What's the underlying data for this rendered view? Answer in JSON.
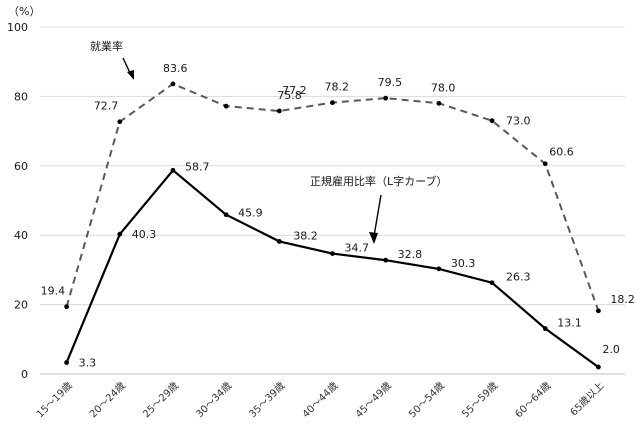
{
  "chart_data": {
    "type": "line",
    "unit_label": "（%）",
    "categories": [
      "15～19歳",
      "20～24歳",
      "25～29歳",
      "30～34歳",
      "35～39歳",
      "40～44歳",
      "45～49歳",
      "50～54歳",
      "55～59歳",
      "60～64歳",
      "65歳以上"
    ],
    "ylim": [
      0,
      100
    ],
    "yticks": [
      0,
      20,
      40,
      60,
      80,
      100
    ],
    "grid": true,
    "series": [
      {
        "name": "就業率",
        "style": "dashed",
        "color": "#595959",
        "values": [
          19.4,
          72.7,
          83.6,
          77.2,
          75.8,
          78.2,
          79.5,
          78.0,
          73.0,
          60.6,
          18.2
        ]
      },
      {
        "name": "正規雇用比率（L字カーブ）",
        "style": "solid",
        "color": "#000000",
        "values": [
          3.3,
          40.3,
          58.7,
          45.9,
          38.2,
          34.7,
          32.8,
          30.3,
          26.3,
          13.1,
          2.0
        ]
      }
    ]
  }
}
